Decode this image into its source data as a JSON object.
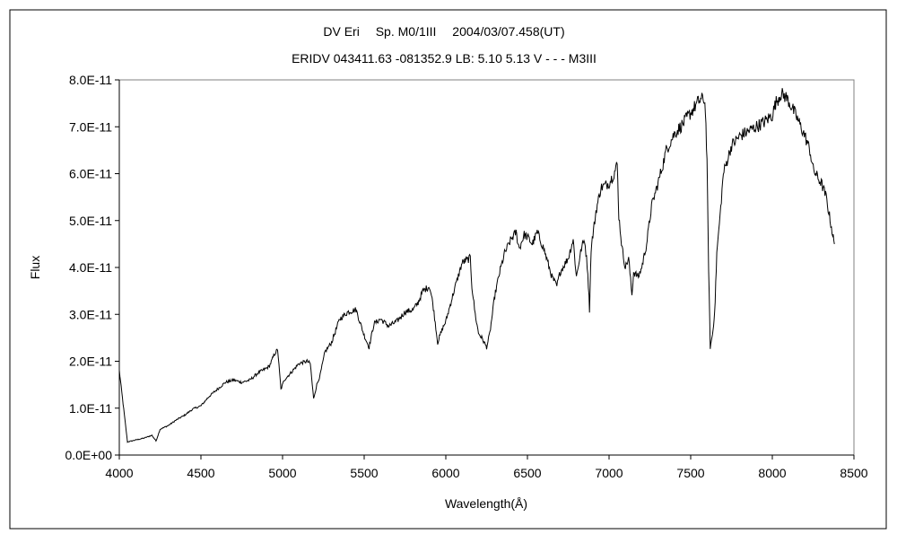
{
  "chart_data": {
    "type": "line",
    "title": "DV Eri　 Sp. M0/1III　 2004/03/07.458(UT)",
    "subtitle": "ERIDV 043411.63 -081352.9 LB: 5.10 5.13 V - - - M3III",
    "xlabel": "Wavelength(Å)",
    "ylabel": "Flux",
    "xlim": [
      4000,
      8500
    ],
    "ylim": [
      0,
      8e-11
    ],
    "x_ticks": [
      4000,
      4500,
      5000,
      5500,
      6000,
      6500,
      7000,
      7500,
      8000,
      8500
    ],
    "x_tick_labels": [
      "4000",
      "4500",
      "5000",
      "5500",
      "6000",
      "6500",
      "7000",
      "7500",
      "8000",
      "8500"
    ],
    "y_ticks": [
      0,
      1e-11,
      2e-11,
      3e-11,
      4e-11,
      5e-11,
      6e-11,
      7e-11,
      8e-11
    ],
    "y_tick_labels": [
      "0.0E+00",
      "1.0E-11",
      "2.0E-11",
      "3.0E-11",
      "4.0E-11",
      "5.0E-11",
      "6.0E-11",
      "7.0E-11",
      "8.0E-11"
    ],
    "grid": false,
    "legend": "none",
    "line_color": "#000000",
    "series": [
      {
        "x": [
          4000,
          4050,
          4100,
          4150,
          4200,
          4225,
          4250,
          4300,
          4350,
          4400,
          4450,
          4500,
          4550,
          4600,
          4650,
          4700,
          4750,
          4800,
          4850,
          4900,
          4920,
          4950,
          4970,
          4990,
          5010,
          5050,
          5100,
          5150,
          5170,
          5190,
          5210,
          5230,
          5260,
          5300,
          5330,
          5350,
          5400,
          5450,
          5500,
          5530,
          5560,
          5600,
          5650,
          5700,
          5750,
          5800,
          5830,
          5860,
          5900,
          5920,
          5950,
          5980,
          6000,
          6050,
          6100,
          6150,
          6160,
          6180,
          6200,
          6220,
          6250,
          6270,
          6300,
          6330,
          6360,
          6400,
          6430,
          6450,
          6480,
          6500,
          6530,
          6560,
          6600,
          6650,
          6680,
          6700,
          6750,
          6780,
          6800,
          6830,
          6850,
          6870,
          6880,
          6890,
          6920,
          6950,
          7000,
          7030,
          7050,
          7060,
          7080,
          7100,
          7120,
          7140,
          7150,
          7180,
          7200,
          7230,
          7260,
          7300,
          7330,
          7350,
          7400,
          7450,
          7500,
          7550,
          7580,
          7590,
          7600,
          7610,
          7620,
          7630,
          7640,
          7650,
          7660,
          7680,
          7700,
          7750,
          7800,
          7850,
          7900,
          7950,
          8000,
          8020,
          8050,
          8080,
          8100,
          8150,
          8200,
          8230,
          8250,
          8280,
          8300,
          8330,
          8350,
          8370,
          8380
        ],
        "y": [
          1.8e-11,
          2.8e-12,
          3.2e-12,
          3.6e-12,
          4.2e-12,
          3e-12,
          5.5e-12,
          6.3e-12,
          7.5e-12,
          8.5e-12,
          9.8e-12,
          1.05e-11,
          1.25e-11,
          1.4e-11,
          1.55e-11,
          1.6e-11,
          1.55e-11,
          1.6e-11,
          1.75e-11,
          1.85e-11,
          1.9e-11,
          2.15e-11,
          2.25e-11,
          1.4e-11,
          1.6e-11,
          1.75e-11,
          1.95e-11,
          2e-11,
          1.95e-11,
          1.2e-11,
          1.5e-11,
          1.7e-11,
          2.2e-11,
          2.4e-11,
          2.7e-11,
          2.9e-11,
          3.05e-11,
          3.1e-11,
          2.55e-11,
          2.3e-11,
          2.8e-11,
          2.9e-11,
          2.75e-11,
          2.85e-11,
          3.05e-11,
          3.1e-11,
          3.25e-11,
          3.5e-11,
          3.6e-11,
          3.25e-11,
          2.4e-11,
          2.7e-11,
          2.85e-11,
          3.5e-11,
          4.1e-11,
          4.2e-11,
          3.6e-11,
          3e-11,
          2.6e-11,
          2.5e-11,
          2.3e-11,
          2.6e-11,
          3.4e-11,
          3.9e-11,
          4.3e-11,
          4.6e-11,
          4.75e-11,
          4.4e-11,
          4.7e-11,
          4.65e-11,
          4.5e-11,
          4.75e-11,
          4.4e-11,
          3.8e-11,
          3.6e-11,
          3.9e-11,
          4.2e-11,
          4.6e-11,
          3.8e-11,
          4.4e-11,
          4.6e-11,
          3.9e-11,
          3.1e-11,
          4.4e-11,
          5.2e-11,
          5.7e-11,
          5.8e-11,
          6e-11,
          6.2e-11,
          5.1e-11,
          4.4e-11,
          4e-11,
          4.2e-11,
          3.4e-11,
          3.9e-11,
          3.8e-11,
          4e-11,
          4.5e-11,
          5.3e-11,
          5.8e-11,
          6.2e-11,
          6.5e-11,
          6.85e-11,
          7.05e-11,
          7.3e-11,
          7.55e-11,
          7.6e-11,
          7.4e-11,
          6.2e-11,
          4e-11,
          2.3e-11,
          2.5e-11,
          2.75e-11,
          3.3e-11,
          4.3e-11,
          5.1e-11,
          6e-11,
          6.6e-11,
          6.8e-11,
          6.9e-11,
          7e-11,
          7.1e-11,
          7.25e-11,
          7.5e-11,
          7.7e-11,
          7.65e-11,
          7.55e-11,
          7.2e-11,
          6.8e-11,
          6.5e-11,
          6.1e-11,
          5.9e-11,
          5.8e-11,
          5.5e-11,
          5.1e-11,
          4.7e-11,
          4.5e-11
        ]
      }
    ]
  }
}
